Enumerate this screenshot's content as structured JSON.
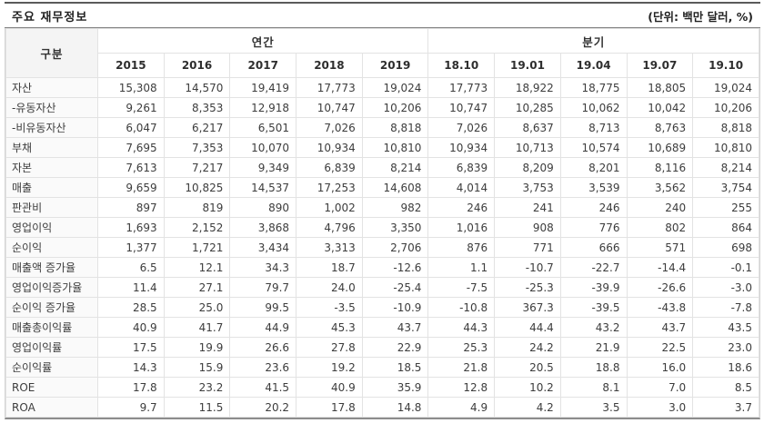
{
  "chart_data": {
    "type": "table",
    "title": "주요 재무정보",
    "unit": "(단위: 백만 달러, %)",
    "row_header": "구분",
    "column_groups": [
      {
        "label": "연간",
        "columns": [
          "2015",
          "2016",
          "2017",
          "2018",
          "2019"
        ]
      },
      {
        "label": "분기",
        "columns": [
          "18.10",
          "19.01",
          "19.04",
          "19.07",
          "19.10"
        ]
      }
    ],
    "rows": [
      {
        "label": "자산",
        "values": [
          "15,308",
          "14,570",
          "19,419",
          "17,773",
          "19,024",
          "17,773",
          "18,922",
          "18,775",
          "18,805",
          "19,024"
        ]
      },
      {
        "label": "-유동자산",
        "values": [
          "9,261",
          "8,353",
          "12,918",
          "10,747",
          "10,206",
          "10,747",
          "10,285",
          "10,062",
          "10,042",
          "10,206"
        ]
      },
      {
        "label": "-비유동자산",
        "values": [
          "6,047",
          "6,217",
          "6,501",
          "7,026",
          "8,818",
          "7,026",
          "8,637",
          "8,713",
          "8,763",
          "8,818"
        ]
      },
      {
        "label": "부채",
        "values": [
          "7,695",
          "7,353",
          "10,070",
          "10,934",
          "10,810",
          "10,934",
          "10,713",
          "10,574",
          "10,689",
          "10,810"
        ]
      },
      {
        "label": "자본",
        "values": [
          "7,613",
          "7,217",
          "9,349",
          "6,839",
          "8,214",
          "6,839",
          "8,209",
          "8,201",
          "8,116",
          "8,214"
        ]
      },
      {
        "label": "매출",
        "values": [
          "9,659",
          "10,825",
          "14,537",
          "17,253",
          "14,608",
          "4,014",
          "3,753",
          "3,539",
          "3,562",
          "3,754"
        ]
      },
      {
        "label": "판관비",
        "values": [
          "897",
          "819",
          "890",
          "1,002",
          "982",
          "246",
          "241",
          "246",
          "240",
          "255"
        ]
      },
      {
        "label": "영업이익",
        "values": [
          "1,693",
          "2,152",
          "3,868",
          "4,796",
          "3,350",
          "1,016",
          "908",
          "776",
          "802",
          "864"
        ]
      },
      {
        "label": "순이익",
        "values": [
          "1,377",
          "1,721",
          "3,434",
          "3,313",
          "2,706",
          "876",
          "771",
          "666",
          "571",
          "698"
        ]
      },
      {
        "label": "매출액 증가율",
        "values": [
          "6.5",
          "12.1",
          "34.3",
          "18.7",
          "-12.6",
          "1.1",
          "-10.7",
          "-22.7",
          "-14.4",
          "-0.1"
        ]
      },
      {
        "label": "영업이익증가율",
        "values": [
          "11.4",
          "27.1",
          "79.7",
          "24.0",
          "-25.4",
          "-7.5",
          "-25.3",
          "-39.9",
          "-26.6",
          "-3.0"
        ]
      },
      {
        "label": "순이익 증가율",
        "values": [
          "28.5",
          "25.0",
          "99.5",
          "-3.5",
          "-10.9",
          "-10.8",
          "367.3",
          "-39.5",
          "-43.8",
          "-7.8"
        ]
      },
      {
        "label": "매출총이익률",
        "values": [
          "40.9",
          "41.7",
          "44.9",
          "45.3",
          "43.7",
          "44.3",
          "44.4",
          "43.2",
          "43.7",
          "43.5"
        ]
      },
      {
        "label": "영업이익률",
        "values": [
          "17.5",
          "19.9",
          "26.6",
          "27.8",
          "22.9",
          "25.3",
          "24.2",
          "21.9",
          "22.5",
          "23.0"
        ]
      },
      {
        "label": "순이익률",
        "values": [
          "14.3",
          "15.9",
          "23.6",
          "19.2",
          "18.5",
          "21.8",
          "20.5",
          "18.8",
          "16.0",
          "18.6"
        ]
      },
      {
        "label": "ROE",
        "values": [
          "17.8",
          "23.2",
          "41.5",
          "40.9",
          "35.9",
          "12.8",
          "10.2",
          "8.1",
          "7.0",
          "8.5"
        ]
      },
      {
        "label": "ROA",
        "values": [
          "9.7",
          "11.5",
          "20.2",
          "17.8",
          "14.8",
          "4.9",
          "4.2",
          "3.5",
          "3.0",
          "3.7"
        ]
      }
    ]
  },
  "colors": {
    "header_bg": "#f4f4f4",
    "label_bg": "#fafafa",
    "cell_border": "#e3e3e3",
    "strong_line": "#8c8c8c",
    "text": "#3d3d3d"
  }
}
